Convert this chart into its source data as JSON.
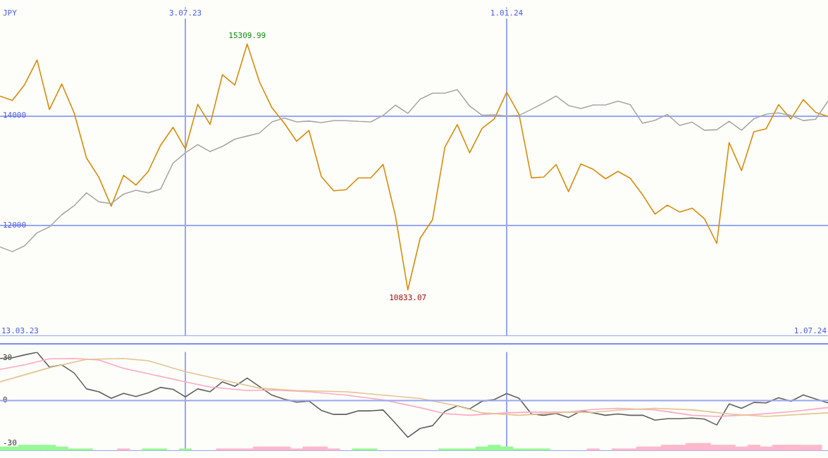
{
  "chart_data": [
    {
      "type": "line",
      "ylabel": "JPY",
      "xlim": [
        "2023-03-20",
        "2024-07-01"
      ],
      "ylim": [
        10000,
        15975
      ],
      "x": [
        "2023-03-20",
        "2023-03-27",
        "2023-04-03",
        "2023-04-10",
        "2023-04-17",
        "2023-04-24",
        "2023-05-01",
        "2023-05-08",
        "2023-05-15",
        "2023-05-22",
        "2023-05-29",
        "2023-06-05",
        "2023-06-12",
        "2023-06-19",
        "2023-06-26",
        "2023-07-03",
        "2023-07-10",
        "2023-07-17",
        "2023-07-24",
        "2023-07-31",
        "2023-08-07",
        "2023-08-14",
        "2023-08-21",
        "2023-08-28",
        "2023-09-04",
        "2023-09-11",
        "2023-09-18",
        "2023-09-25",
        "2023-10-02",
        "2023-10-09",
        "2023-10-16",
        "2023-10-23",
        "2023-10-30",
        "2023-11-06",
        "2023-11-13",
        "2023-11-20",
        "2023-11-27",
        "2023-12-04",
        "2023-12-11",
        "2023-12-18",
        "2023-12-25",
        "2024-01-01",
        "2024-01-08",
        "2024-01-15",
        "2024-01-22",
        "2024-01-29",
        "2024-02-05",
        "2024-02-12",
        "2024-02-19",
        "2024-02-26",
        "2024-03-04",
        "2024-03-11",
        "2024-03-18",
        "2024-03-25",
        "2024-04-01",
        "2024-04-08",
        "2024-04-15",
        "2024-04-22",
        "2024-04-29",
        "2024-05-06",
        "2024-05-13",
        "2024-05-20",
        "2024-05-27",
        "2024-06-03",
        "2024-06-10",
        "2024-06-17",
        "2024-06-24",
        "2024-07-01"
      ],
      "xticks": [
        {
          "value": "2023-07-03",
          "label": "3.07.23"
        },
        {
          "value": "2024-01-01",
          "label": "1.01.24"
        }
      ],
      "yticks": [
        12000,
        14000
      ],
      "grid": true,
      "annotations": [
        "13.03.23",
        "1.07.24",
        {
          "text": "15309.99",
          "x": "2023-08-07",
          "y": 15309.99
        },
        {
          "text": "10833.07",
          "x": "2023-11-06",
          "y": 10833.07
        }
      ],
      "series": [
        {
          "color": "#a8a8a8",
          "values": [
            11615,
            11530,
            11638,
            11873,
            11981,
            12202,
            12366,
            12601,
            12437,
            12404,
            12577,
            12648,
            12601,
            12671,
            13141,
            13329,
            13479,
            13352,
            13446,
            13577,
            13634,
            13690,
            13892,
            13962,
            13892,
            13906,
            13878,
            13915,
            13915,
            13901,
            13892,
            14009,
            14197,
            14047,
            14305,
            14414,
            14414,
            14479,
            14181,
            14014,
            14019,
            14000,
            14009,
            14121,
            14237,
            14363,
            14191,
            14135,
            14200,
            14200,
            14270,
            14205,
            13865,
            13921,
            14028,
            13828,
            13888,
            13740,
            13749,
            13902,
            13740,
            13949,
            14033,
            14056,
            14009,
            13916,
            13939,
            14270
          ]
        },
        {
          "color": "#d98c0a",
          "values": [
            14361,
            14282,
            14573,
            15019,
            14117,
            14582,
            14056,
            13235,
            12883,
            12357,
            12920,
            12742,
            12991,
            13469,
            13793,
            13399,
            14211,
            13845,
            14751,
            14563,
            15309.99,
            14620,
            14150,
            13869,
            13540,
            13737,
            12897,
            12638,
            12657,
            12873,
            12873,
            13117,
            12178,
            10833.07,
            11775,
            12112,
            13433,
            13842,
            13330,
            13772,
            13949,
            14433,
            14028,
            12874,
            12888,
            13116,
            12623,
            13126,
            13028,
            12856,
            12991,
            12865,
            12563,
            12214,
            12377,
            12251,
            12321,
            12130,
            11679,
            13516,
            13005,
            13712,
            13767,
            14205,
            13944,
            14298,
            14065,
            13991
          ]
        }
      ]
    },
    {
      "type": "line",
      "xlim": [
        "2023-03-20",
        "2024-07-01"
      ],
      "ylim": [
        -35,
        34
      ],
      "x": [
        "2023-03-20",
        "2023-03-27",
        "2023-04-03",
        "2023-04-10",
        "2023-04-17",
        "2023-04-24",
        "2023-05-01",
        "2023-05-08",
        "2023-05-15",
        "2023-05-22",
        "2023-05-29",
        "2023-06-05",
        "2023-06-12",
        "2023-06-19",
        "2023-06-26",
        "2023-07-03",
        "2023-07-10",
        "2023-07-17",
        "2023-07-24",
        "2023-07-31",
        "2023-08-07",
        "2023-08-14",
        "2023-08-21",
        "2023-08-28",
        "2023-09-04",
        "2023-09-11",
        "2023-09-18",
        "2023-09-25",
        "2023-10-02",
        "2023-10-09",
        "2023-10-16",
        "2023-10-23",
        "2023-10-30",
        "2023-11-06",
        "2023-11-13",
        "2023-11-20",
        "2023-11-27",
        "2023-12-04",
        "2023-12-11",
        "2023-12-18",
        "2023-12-25",
        "2024-01-01",
        "2024-01-08",
        "2024-01-15",
        "2024-01-22",
        "2024-01-29",
        "2024-02-05",
        "2024-02-12",
        "2024-02-19",
        "2024-02-26",
        "2024-03-04",
        "2024-03-11",
        "2024-03-18",
        "2024-03-25",
        "2024-04-01",
        "2024-04-08",
        "2024-04-15",
        "2024-04-22",
        "2024-04-29",
        "2024-05-06",
        "2024-05-13",
        "2024-05-20",
        "2024-05-27",
        "2024-06-03",
        "2024-06-10",
        "2024-06-17",
        "2024-06-24",
        "2024-07-01"
      ],
      "xticks": [
        {
          "value": "2023-07-03",
          "label": null
        },
        {
          "value": "2024-01-01",
          "label": null
        }
      ],
      "yticks": [
        30,
        0,
        -30
      ],
      "grid": "x",
      "tick_labels": "y",
      "ref_lines": [
        {
          "axis": "y",
          "value": 0
        }
      ],
      "series": [
        {
          "type": "bar",
          "colors": [
            "#98f898",
            "#98f898",
            "#98f898",
            "#98f898",
            "#98f898",
            "#98f898",
            "#98f898",
            "#98f898",
            null,
            null,
            "#ffb8cc",
            null,
            "#98f898",
            "#98f898",
            null,
            "#98f898",
            null,
            null,
            "#ffb8cc",
            "#ffb8cc",
            "#ffb8cc",
            "#ffb8cc",
            "#ffb8cc",
            "#ffb8cc",
            "#ffb8cc",
            "#ffb8cc",
            "#ffb8cc",
            "#ffb8cc",
            null,
            "#98f898",
            "#98f898",
            null,
            null,
            null,
            null,
            null,
            "#98f898",
            "#98f898",
            "#98f898",
            "#98f898",
            "#98f898",
            "#98f898",
            "#98f898",
            "#98f898",
            "#98f898",
            null,
            null,
            null,
            "#ffb8cc",
            null,
            "#ffb8cc",
            "#ffb8cc",
            "#ffb8cc",
            "#ffb8cc",
            "#ffb8cc",
            "#ffb8cc",
            "#ffb8cc",
            "#ffb8cc",
            "#ffb8cc",
            "#ffb8cc",
            "#ffb8cc",
            "#ffb8cc",
            "#ffb8cc",
            "#ffb8cc",
            "#ffb8cc",
            "#ffb8cc",
            "#ffb8cc",
            null
          ],
          "base": [
            -35,
            -35,
            -35,
            -35,
            -35,
            -35,
            -35,
            -35,
            null,
            null,
            -35,
            null,
            -35,
            -35,
            null,
            -35,
            null,
            null,
            -35,
            -35,
            -35,
            -35,
            -35,
            -35,
            -35,
            -35,
            -35,
            -35,
            null,
            -35,
            -35,
            null,
            null,
            null,
            null,
            null,
            -35,
            -35,
            -35,
            -35,
            -35,
            -35,
            -35,
            -35,
            -35,
            null,
            null,
            null,
            -35,
            null,
            -35,
            -35,
            -35,
            -35,
            -35,
            -35,
            -35,
            -35,
            -35,
            -35,
            -35,
            -35,
            -35,
            -35,
            -35,
            -35,
            -35,
            null
          ],
          "values": [
            2.6,
            2.6,
            3.9,
            3.9,
            3.9,
            2.6,
            1.3,
            1.3,
            null,
            null,
            1.3,
            null,
            1.3,
            1.3,
            null,
            1.3,
            null,
            null,
            1.3,
            1.3,
            1.3,
            2.6,
            2.6,
            2.6,
            1.3,
            2.6,
            2.6,
            1.3,
            null,
            1.3,
            1.3,
            null,
            null,
            null,
            null,
            null,
            1.3,
            1.3,
            1.3,
            2.6,
            3.9,
            2.6,
            1.3,
            1.3,
            1.3,
            null,
            null,
            null,
            1.3,
            null,
            1.3,
            1.3,
            2.6,
            2.6,
            3.9,
            3.9,
            5.1,
            5.1,
            3.9,
            3.9,
            2.6,
            3.9,
            2.6,
            3.9,
            3.9,
            3.9,
            3.9,
            null
          ]
        },
        {
          "color": "#e2c490",
          "x": [
            "2023-03-20",
            "2023-04-17",
            "2023-05-08",
            "2023-05-29",
            "2023-06-12",
            "2023-07-03",
            "2023-07-24",
            "2023-08-14",
            "2023-09-04",
            "2023-10-02",
            "2023-10-23",
            "2023-11-13",
            "2023-12-04",
            "2023-12-18",
            "2024-01-08",
            "2024-02-05",
            "2024-02-19",
            "2024-03-04",
            "2024-03-25",
            "2024-04-15",
            "2024-05-06",
            "2024-05-27",
            "2024-07-01"
          ],
          "values": [
            13.1,
            23,
            28.9,
            29.5,
            27.9,
            20.2,
            14.4,
            8.7,
            7,
            6.2,
            3.8,
            1.5,
            -3.7,
            -8.6,
            -10.3,
            -8.1,
            -8.3,
            -6.7,
            -5.4,
            -6.5,
            -9.4,
            -11.1,
            -8.6
          ]
        },
        {
          "color": "#ffa8c4",
          "x": [
            "2023-03-20",
            "2023-04-03",
            "2023-04-17",
            "2023-05-01",
            "2023-05-15",
            "2023-05-29",
            "2023-06-19",
            "2023-07-03",
            "2023-07-17",
            "2023-08-07",
            "2023-08-21",
            "2023-09-11",
            "2023-10-02",
            "2023-10-23",
            "2023-11-13",
            "2023-11-27",
            "2023-12-11",
            "2024-01-01",
            "2024-01-15",
            "2024-02-05",
            "2024-02-19",
            "2024-03-04",
            "2024-03-25",
            "2024-04-15",
            "2024-04-29",
            "2024-05-20",
            "2024-06-10",
            "2024-07-01"
          ],
          "values": [
            21.8,
            25,
            29.2,
            29.5,
            28.4,
            22.6,
            16.9,
            13.1,
            9.5,
            7,
            7.4,
            6.2,
            3.8,
            0.5,
            -5,
            -9.1,
            -10.3,
            -8.6,
            -8.1,
            -8.1,
            -6.2,
            -5.4,
            -6.5,
            -10.3,
            -11.1,
            -9.8,
            -7.8,
            -4.9
          ]
        },
        {
          "color": "#606060",
          "values": [
            29.5,
            30,
            32,
            33.8,
            23.4,
            25,
            19.3,
            8.2,
            6.2,
            1.6,
            5.1,
            2.8,
            5.4,
            9.2,
            7.9,
            2.6,
            8.2,
            6.2,
            13.1,
            10,
            15.7,
            9.8,
            3.8,
            1,
            -1.1,
            -0.3,
            -6.9,
            -9.7,
            -9.7,
            -7.2,
            -7.2,
            -6.6,
            -15.9,
            -25.7,
            -19.5,
            -17.6,
            -7.5,
            -3.7,
            -5.9,
            -0.5,
            0.7,
            4.9,
            1.6,
            -9.4,
            -10.3,
            -9,
            -11.9,
            -7.3,
            -8.6,
            -10.3,
            -9.4,
            -10.3,
            -10.3,
            -13.7,
            -12.7,
            -12.7,
            -12.2,
            -13,
            -17.1,
            -2.4,
            -5.4,
            -1.3,
            -1.6,
            2,
            -0.5,
            3.9,
            1.1,
            -1.6
          ]
        }
      ]
    }
  ]
}
